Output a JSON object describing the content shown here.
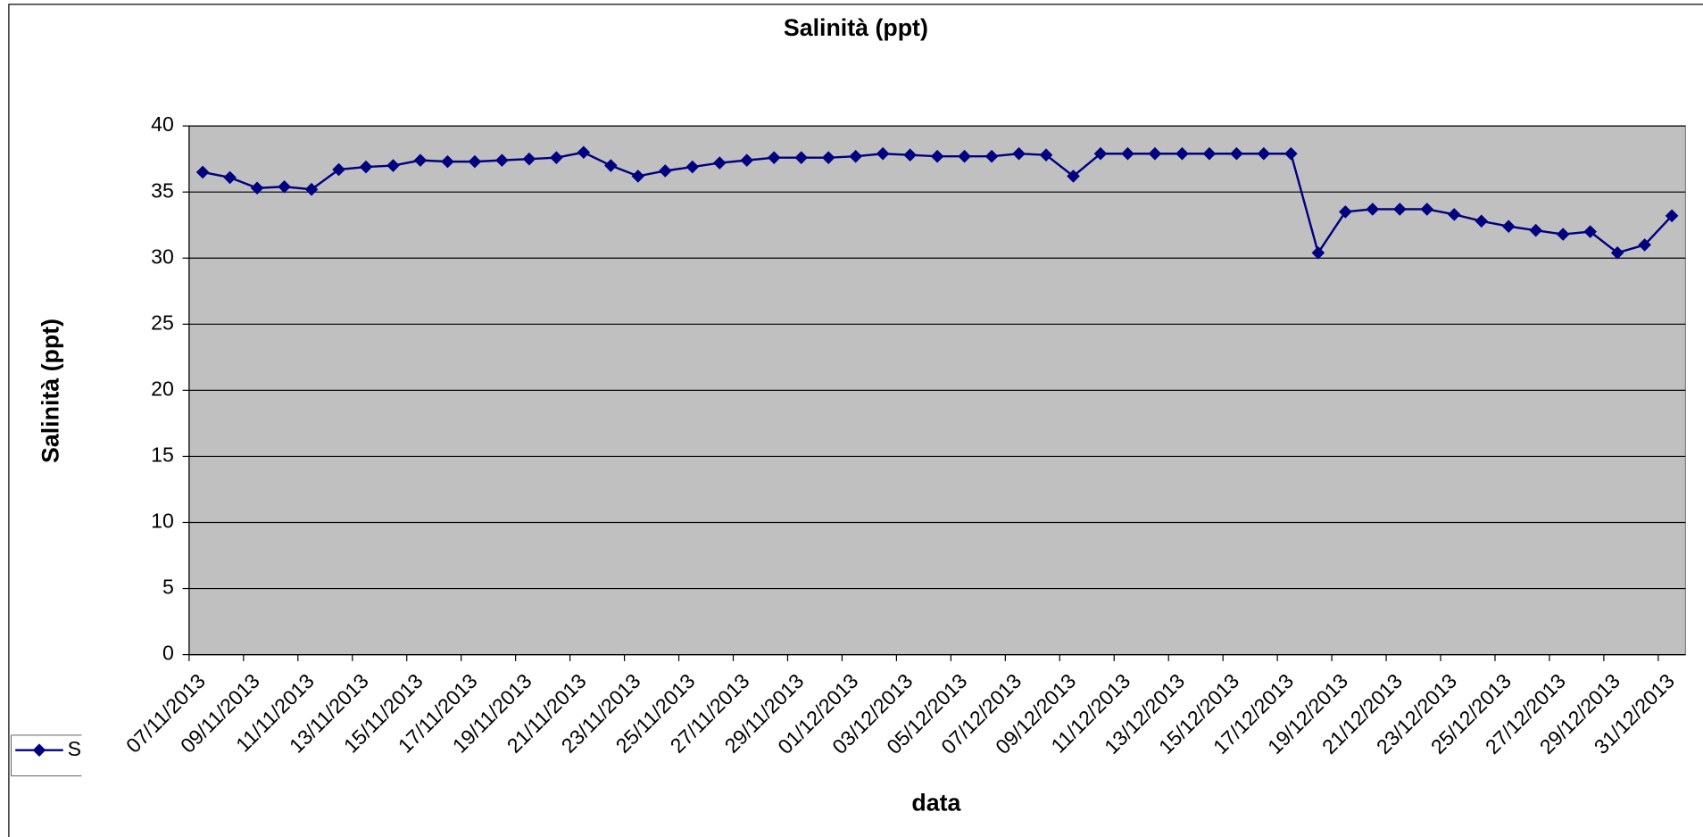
{
  "chart_data": {
    "type": "line",
    "title": "Salinità (ppt)",
    "x_label": "data",
    "y_label": "Salinità (ppt)",
    "categories": [
      "07/11/2013",
      null,
      "09/11/2013",
      null,
      "11/11/2013",
      null,
      "13/11/2013",
      null,
      "15/11/2013",
      null,
      "17/11/2013",
      null,
      "19/11/2013",
      null,
      "21/11/2013",
      null,
      "23/11/2013",
      null,
      "25/11/2013",
      null,
      "27/11/2013",
      null,
      "29/11/2013",
      null,
      "01/12/2013",
      null,
      "03/12/2013",
      null,
      "05/12/2013",
      null,
      "07/12/2013",
      null,
      "09/12/2013",
      null,
      "11/12/2013",
      null,
      "13/12/2013",
      null,
      "15/12/2013",
      null,
      "17/12/2013",
      null,
      "19/12/2013",
      null,
      "21/12/2013",
      null,
      "23/12/2013",
      null,
      "25/12/2013",
      null,
      "27/12/2013",
      null,
      "29/12/2013",
      null,
      "31/12/2013"
    ],
    "series": [
      {
        "name": "S",
        "color": "#000080",
        "values": [
          36.5,
          36.1,
          35.3,
          35.4,
          35.2,
          36.7,
          36.9,
          37.0,
          37.4,
          37.3,
          37.3,
          37.4,
          37.5,
          37.6,
          38.0,
          37.0,
          36.2,
          36.6,
          36.9,
          37.2,
          37.4,
          37.6,
          37.6,
          37.6,
          37.7,
          37.9,
          37.8,
          37.7,
          37.7,
          37.7,
          37.9,
          37.8,
          36.2,
          37.9,
          37.9,
          37.9,
          37.9,
          37.9,
          37.9,
          37.9,
          37.9,
          30.4,
          33.5,
          33.7,
          33.7,
          33.7,
          33.3,
          32.8,
          32.4,
          32.1,
          31.8,
          32.0,
          30.4,
          31.0,
          33.2
        ]
      }
    ],
    "ylim": [
      0,
      40
    ],
    "yticks": [
      0,
      5,
      10,
      15,
      20,
      25,
      30,
      35,
      40
    ],
    "grid": true,
    "plot_background": "#c0c0c0",
    "legend": "bottom-left"
  }
}
